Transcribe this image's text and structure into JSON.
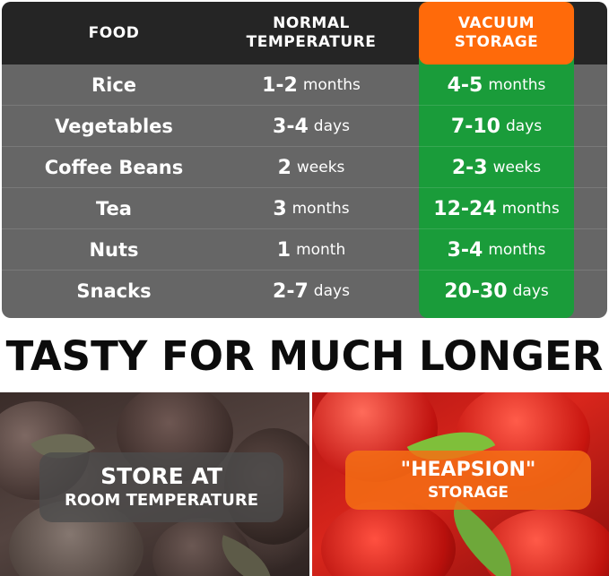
{
  "table": {
    "headers": {
      "food": "FOOD",
      "normal_line1": "NORMAL",
      "normal_line2": "TEMPERATURE",
      "vacuum_line1": "VACUUM",
      "vacuum_line2": "STORAGE"
    },
    "rows": [
      {
        "food": "Rice",
        "normal_num": "1-2",
        "normal_unit": "months",
        "vacuum_num": "4-5",
        "vacuum_unit": "months"
      },
      {
        "food": "Vegetables",
        "normal_num": "3-4",
        "normal_unit": "days",
        "vacuum_num": "7-10",
        "vacuum_unit": "days"
      },
      {
        "food": "Coffee Beans",
        "normal_num": "2",
        "normal_unit": "weeks",
        "vacuum_num": "2-3",
        "vacuum_unit": "weeks"
      },
      {
        "food": "Tea",
        "normal_num": "3",
        "normal_unit": "months",
        "vacuum_num": "12-24",
        "vacuum_unit": "months"
      },
      {
        "food": "Nuts",
        "normal_num": "1",
        "normal_unit": "month",
        "vacuum_num": "3-4",
        "vacuum_unit": "months"
      },
      {
        "food": "Snacks",
        "normal_num": "2-7",
        "normal_unit": "days",
        "vacuum_num": "20-30",
        "vacuum_unit": "days"
      }
    ]
  },
  "tagline": "TASTY FOR MUCH LONGER",
  "panels": {
    "left": {
      "line1": "STORE AT",
      "line2": "ROOM TEMPERATURE"
    },
    "right": {
      "line1": "\"HEAPSION\"",
      "line2": "STORAGE"
    }
  },
  "colors": {
    "header_bg": "#252525",
    "row_bg": "#666666",
    "vacuum_column": "#1a9c3a",
    "vacuum_header": "#ff6a0a"
  }
}
